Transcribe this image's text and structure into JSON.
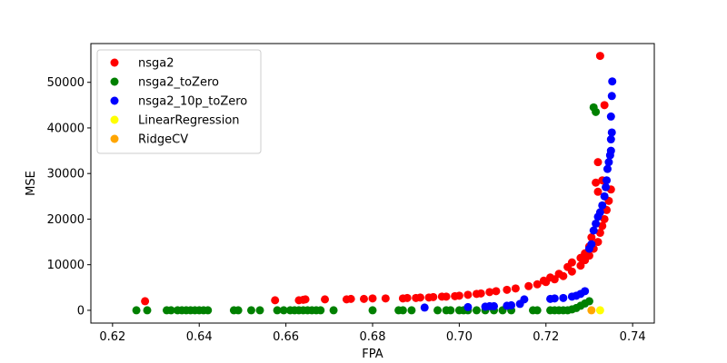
{
  "chart_data": {
    "type": "scatter",
    "xlabel": "FPA",
    "ylabel": "MSE",
    "xlim": [
      0.615,
      0.745
    ],
    "ylim": [
      -2800,
      58500
    ],
    "xticks": [
      0.62,
      0.64,
      0.66,
      0.68,
      0.7,
      0.72,
      0.74
    ],
    "xtick_labels": [
      "0.62",
      "0.64",
      "0.66",
      "0.68",
      "0.70",
      "0.72",
      "0.74"
    ],
    "yticks": [
      0,
      10000,
      20000,
      30000,
      40000,
      50000
    ],
    "ytick_labels": [
      "0",
      "10000",
      "20000",
      "30000",
      "40000",
      "50000"
    ],
    "grid": false,
    "legend_position": "top-left",
    "series": [
      {
        "name": "nsga2",
        "color": "#ff0000",
        "points": [
          [
            0.6275,
            2000
          ],
          [
            0.6575,
            2200
          ],
          [
            0.663,
            2200
          ],
          [
            0.664,
            2300
          ],
          [
            0.6645,
            2400
          ],
          [
            0.669,
            2400
          ],
          [
            0.674,
            2400
          ],
          [
            0.675,
            2500
          ],
          [
            0.678,
            2500
          ],
          [
            0.68,
            2600
          ],
          [
            0.683,
            2600
          ],
          [
            0.687,
            2600
          ],
          [
            0.688,
            2700
          ],
          [
            0.69,
            2700
          ],
          [
            0.691,
            2800
          ],
          [
            0.693,
            2800
          ],
          [
            0.694,
            2900
          ],
          [
            0.696,
            3000
          ],
          [
            0.697,
            3000
          ],
          [
            0.699,
            3100
          ],
          [
            0.7,
            3200
          ],
          [
            0.702,
            3400
          ],
          [
            0.704,
            3600
          ],
          [
            0.705,
            3700
          ],
          [
            0.707,
            4000
          ],
          [
            0.7085,
            4200
          ],
          [
            0.711,
            4500
          ],
          [
            0.713,
            4800
          ],
          [
            0.716,
            5300
          ],
          [
            0.718,
            5700
          ],
          [
            0.72,
            6200
          ],
          [
            0.722,
            6800
          ],
          [
            0.724,
            7500
          ],
          [
            0.726,
            8500
          ],
          [
            0.728,
            9800
          ],
          [
            0.729,
            11000
          ],
          [
            0.73,
            12000
          ],
          [
            0.731,
            13500
          ],
          [
            0.732,
            15000
          ],
          [
            0.7325,
            17000
          ],
          [
            0.733,
            18500
          ],
          [
            0.7335,
            20000
          ],
          [
            0.734,
            22000
          ],
          [
            0.7345,
            24000
          ],
          [
            0.735,
            26500
          ],
          [
            0.732,
            26000
          ],
          [
            0.7315,
            28000
          ],
          [
            0.733,
            28500
          ],
          [
            0.732,
            32500
          ],
          [
            0.7335,
            45000
          ],
          [
            0.7325,
            55800
          ],
          [
            0.73,
            14000
          ],
          [
            0.7305,
            16000
          ],
          [
            0.729,
            12500
          ],
          [
            0.728,
            11500
          ],
          [
            0.726,
            10500
          ],
          [
            0.725,
            9500
          ],
          [
            0.723,
            8000
          ],
          [
            0.721,
            7200
          ],
          [
            0.7195,
            6500
          ]
        ]
      },
      {
        "name": "nsga2_toZero",
        "color": "#008000",
        "points": [
          [
            0.6255,
            0
          ],
          [
            0.628,
            0
          ],
          [
            0.6325,
            0
          ],
          [
            0.6335,
            0
          ],
          [
            0.635,
            0
          ],
          [
            0.636,
            0
          ],
          [
            0.637,
            0
          ],
          [
            0.638,
            0
          ],
          [
            0.639,
            0
          ],
          [
            0.64,
            0
          ],
          [
            0.641,
            0
          ],
          [
            0.642,
            0
          ],
          [
            0.648,
            0
          ],
          [
            0.649,
            0
          ],
          [
            0.652,
            0
          ],
          [
            0.654,
            0
          ],
          [
            0.658,
            0
          ],
          [
            0.6595,
            0
          ],
          [
            0.661,
            0
          ],
          [
            0.662,
            0
          ],
          [
            0.663,
            0
          ],
          [
            0.664,
            0
          ],
          [
            0.665,
            0
          ],
          [
            0.666,
            0
          ],
          [
            0.667,
            0
          ],
          [
            0.668,
            0
          ],
          [
            0.671,
            0
          ],
          [
            0.68,
            0
          ],
          [
            0.686,
            0
          ],
          [
            0.687,
            0
          ],
          [
            0.689,
            0
          ],
          [
            0.695,
            0
          ],
          [
            0.697,
            0
          ],
          [
            0.698,
            0
          ],
          [
            0.7,
            0
          ],
          [
            0.701,
            0
          ],
          [
            0.702,
            0
          ],
          [
            0.704,
            0
          ],
          [
            0.706,
            0
          ],
          [
            0.708,
            0
          ],
          [
            0.71,
            0
          ],
          [
            0.712,
            0
          ],
          [
            0.717,
            0
          ],
          [
            0.718,
            0
          ],
          [
            0.721,
            0
          ],
          [
            0.722,
            0
          ],
          [
            0.723,
            0
          ],
          [
            0.724,
            0
          ],
          [
            0.725,
            0
          ],
          [
            0.726,
            200
          ],
          [
            0.727,
            500
          ],
          [
            0.728,
            1000
          ],
          [
            0.729,
            1500
          ],
          [
            0.73,
            2000
          ],
          [
            0.731,
            44500
          ],
          [
            0.7315,
            43500
          ]
        ]
      },
      {
        "name": "nsga2_10p_toZero",
        "color": "#0000ff",
        "points": [
          [
            0.692,
            600
          ],
          [
            0.702,
            700
          ],
          [
            0.706,
            800
          ],
          [
            0.707,
            900
          ],
          [
            0.708,
            900
          ],
          [
            0.711,
            1000
          ],
          [
            0.712,
            1100
          ],
          [
            0.714,
            1400
          ],
          [
            0.715,
            2400
          ],
          [
            0.721,
            2500
          ],
          [
            0.722,
            2600
          ],
          [
            0.724,
            2700
          ],
          [
            0.726,
            3000
          ],
          [
            0.727,
            3200
          ],
          [
            0.728,
            3600
          ],
          [
            0.729,
            4200
          ],
          [
            0.73,
            13500
          ],
          [
            0.7305,
            14500
          ],
          [
            0.731,
            17500
          ],
          [
            0.7315,
            19000
          ],
          [
            0.732,
            20500
          ],
          [
            0.7325,
            21500
          ],
          [
            0.733,
            23000
          ],
          [
            0.7335,
            25000
          ],
          [
            0.7338,
            27000
          ],
          [
            0.734,
            28500
          ],
          [
            0.7342,
            31000
          ],
          [
            0.7345,
            32500
          ],
          [
            0.7348,
            34000
          ],
          [
            0.735,
            35000
          ],
          [
            0.735,
            37500
          ],
          [
            0.7352,
            39000
          ],
          [
            0.735,
            42500
          ],
          [
            0.7352,
            47000
          ],
          [
            0.7353,
            50200
          ]
        ]
      },
      {
        "name": "LinearRegression",
        "color": "#ffff00",
        "points": [
          [
            0.7325,
            0
          ]
        ]
      },
      {
        "name": "RidgeCV",
        "color": "#ffa500",
        "points": [
          [
            0.7305,
            0
          ]
        ]
      }
    ]
  }
}
